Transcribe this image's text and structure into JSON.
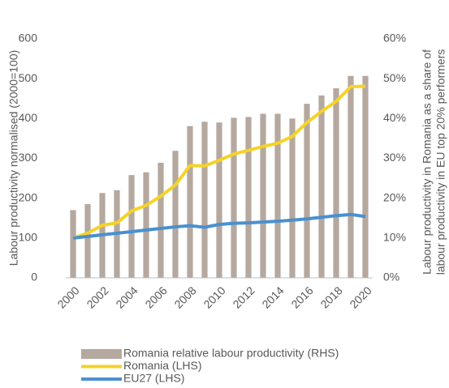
{
  "chart_data": {
    "type": "bar_line",
    "y_label": "Labour productivity normalised (2000=100)",
    "y2_label": [
      "Labour productivity in Romania as a share of",
      "labour productivity in EU top 20% performers"
    ],
    "categories": [
      "2000",
      null,
      "2002",
      null,
      "2004",
      null,
      "2006",
      null,
      "2008",
      null,
      "2010",
      null,
      "2012",
      null,
      "2014",
      null,
      "2016",
      null,
      "2018",
      null,
      "2020"
    ],
    "series": [
      {
        "name": "Romania relative labour productivity (RHS)",
        "color": "#b5a89f",
        "kind": "bar",
        "axis": "y2",
        "values": [
          17,
          18.5,
          21.3,
          22,
          25.8,
          26.5,
          28.9,
          31.9,
          38.1,
          39.2,
          39,
          40.2,
          40.4,
          41.2,
          41.2,
          40,
          43.7,
          45.8,
          47.6,
          50.7,
          50.7
        ]
      },
      {
        "name": "Romania (LHS)",
        "color": "#f5d327",
        "kind": "line",
        "values": [
          100,
          112,
          132,
          138,
          168,
          182,
          205,
          233,
          282,
          281,
          295,
          311,
          320,
          330,
          338,
          355,
          390,
          418,
          443,
          480,
          481
        ]
      },
      {
        "name": "EU27 (LHS)",
        "color": "#4a90d0",
        "kind": "line",
        "values": [
          100,
          104,
          108,
          112,
          116,
          120,
          124,
          128,
          131,
          127,
          134,
          137,
          138,
          140,
          142,
          145,
          148,
          152,
          156,
          159,
          154
        ]
      }
    ],
    "ylim": [
      0,
      600
    ],
    "yticks": [
      0,
      100,
      200,
      300,
      400,
      500,
      600
    ],
    "y2lim": [
      0,
      60
    ],
    "y2ticks": [
      {
        "value": 0,
        "label": "0%"
      },
      {
        "value": 10,
        "label": "10%"
      },
      {
        "value": 20,
        "label": "20%"
      },
      {
        "value": 30,
        "label": "30%"
      },
      {
        "value": 40,
        "label": "40%"
      },
      {
        "value": 50,
        "label": "50%"
      },
      {
        "value": 60,
        "label": "60%"
      }
    ],
    "grid": false
  }
}
